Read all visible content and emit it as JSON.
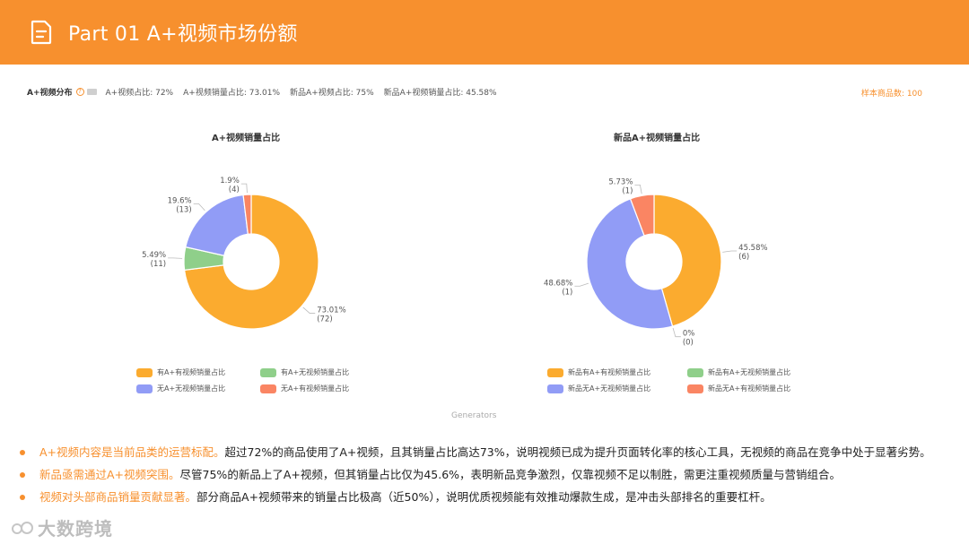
{
  "header": {
    "title": "Part 01  A+视频市场份额"
  },
  "stats": {
    "label": "A+视频分布",
    "items": [
      "A+视频占比: 72%",
      "A+视频销量占比: 73.01%",
      "新品A+视频占比: 75%",
      "新品A+视频销量占比: 45.58%"
    ],
    "sample": "样本商品数: 100"
  },
  "colors": {
    "accent": "#f7902e",
    "orange": "#fbab2f",
    "green": "#8fcf8a",
    "blue": "#919cf6",
    "red": "#fa8563"
  },
  "chart_data": [
    {
      "type": "pie",
      "donut": true,
      "title": "A+视频销量占比",
      "slices": [
        {
          "name": "有A+有视频销量占比",
          "percent": "73.01%",
          "count": "(72)",
          "value": 73.01,
          "color": "#fbab2f"
        },
        {
          "name": "有A+无视频销量占比",
          "percent": "5.49%",
          "count": "(11)",
          "value": 5.49,
          "color": "#8fcf8a"
        },
        {
          "name": "无A+无视频销量占比",
          "percent": "19.6%",
          "count": "(13)",
          "value": 19.6,
          "color": "#919cf6"
        },
        {
          "name": "无A+有视频销量占比",
          "percent": "1.9%",
          "count": "(4)",
          "value": 1.9,
          "color": "#fa8563"
        }
      ],
      "legend": "bottom"
    },
    {
      "type": "pie",
      "donut": true,
      "title": "新品A+视频销量占比",
      "slices": [
        {
          "name": "新品有A+有视频销量占比",
          "percent": "45.58%",
          "count": "(6)",
          "value": 45.58,
          "color": "#fbab2f"
        },
        {
          "name": "新品有A+无视频销量占比",
          "percent": "0%",
          "count": "(0)",
          "value": 0,
          "color": "#8fcf8a"
        },
        {
          "name": "新品无A+无视频销量占比",
          "percent": "48.68%",
          "count": "(1)",
          "value": 48.68,
          "color": "#919cf6"
        },
        {
          "name": "新品无A+有视频销量占比",
          "percent": "5.73%",
          "count": "(1)",
          "value": 5.73,
          "color": "#fa8563"
        }
      ],
      "legend": "bottom"
    }
  ],
  "generators_label": "Generators",
  "bullets": [
    {
      "highlight": "A+视频内容是当前品类的运营标配。",
      "text": "超过72%的商品使用了A+视频，且其销量占比高达73%，说明视频已成为提升页面转化率的核心工具，无视频的商品在竞争中处于显著劣势。"
    },
    {
      "highlight": "新品亟需通过A+视频突围。",
      "text": "尽管75%的新品上了A+视频，但其销量占比仅为45.6%，表明新品竞争激烈，仅靠视频不足以制胜，需更注重视频质量与营销组合。"
    },
    {
      "highlight": "视频对头部商品销量贡献显著。",
      "text": "部分商品A+视频带来的销量占比极高（近50%），说明优质视频能有效推动爆款生成，是冲击头部排名的重要杠杆。"
    }
  ],
  "watermark": {
    "text": "大数跨境",
    "logo_text": "60"
  }
}
